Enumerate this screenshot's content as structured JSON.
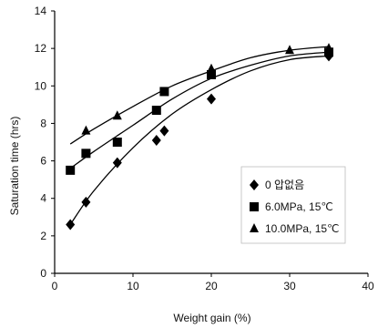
{
  "chart_data": {
    "type": "scatter",
    "xlabel": "Weight gain (%)",
    "ylabel": "Saturation time (hrs)",
    "xlim": [
      0,
      40
    ],
    "ylim": [
      0,
      14
    ],
    "xticks": [
      "0",
      "10",
      "20",
      "30",
      "40"
    ],
    "yticks": [
      "0",
      "2",
      "4",
      "6",
      "8",
      "10",
      "12",
      "14"
    ],
    "grid": false,
    "legend_position": "right",
    "series": [
      {
        "name": "0 압없음",
        "marker": "diamond",
        "color": "#000000",
        "x": [
          2,
          4,
          8,
          13,
          14,
          20,
          35
        ],
        "y": [
          2.6,
          3.8,
          5.9,
          7.1,
          7.6,
          9.3,
          11.6
        ],
        "trend_x": [
          2,
          5,
          10,
          15,
          20,
          25,
          30,
          35
        ],
        "trend_y": [
          2.6,
          4.4,
          6.7,
          8.5,
          9.8,
          10.8,
          11.4,
          11.6
        ]
      },
      {
        "name": "6.0MPa, 15℃",
        "marker": "square",
        "color": "#000000",
        "x": [
          2,
          4,
          8,
          13,
          14,
          20,
          35
        ],
        "y": [
          5.5,
          6.4,
          7.0,
          8.7,
          9.7,
          10.6,
          11.8
        ],
        "trend_x": [
          2,
          5,
          10,
          15,
          20,
          25,
          30,
          35
        ],
        "trend_y": [
          5.6,
          6.5,
          7.9,
          9.3,
          10.4,
          11.1,
          11.6,
          11.8
        ]
      },
      {
        "name": "10.0MPa, 15℃",
        "marker": "triangle",
        "color": "#000000",
        "x": [
          4,
          8,
          20,
          30,
          35
        ],
        "y": [
          7.6,
          8.4,
          10.9,
          11.9,
          12.0
        ],
        "trend_x": [
          2,
          5,
          10,
          15,
          20,
          25,
          30,
          35
        ],
        "trend_y": [
          6.9,
          7.7,
          8.9,
          10.0,
          10.8,
          11.5,
          11.9,
          12.1
        ]
      }
    ]
  }
}
